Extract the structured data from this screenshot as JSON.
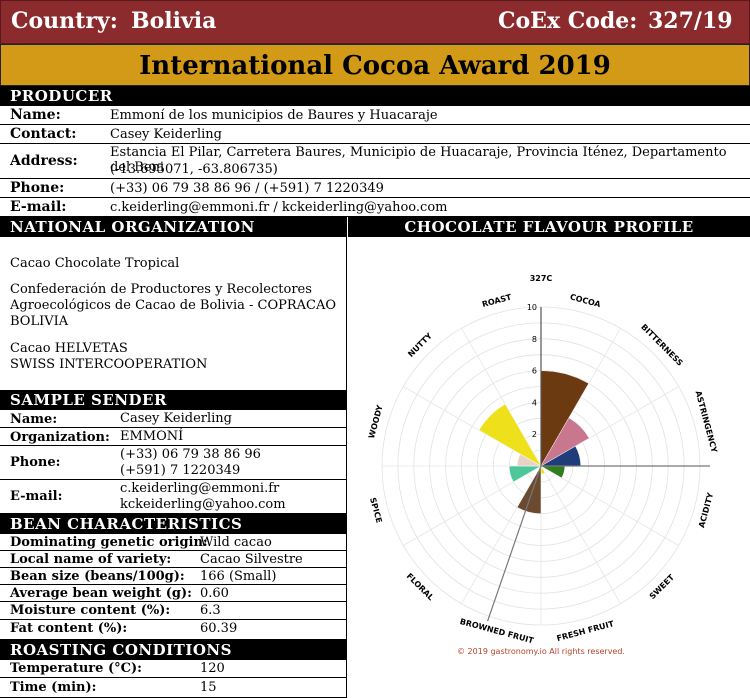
{
  "header": {
    "country_label": "Country:",
    "country": "Bolivia",
    "coex_label": "CoEx Code:",
    "coex_code": "327/19",
    "award_title": "International Cocoa Award 2019"
  },
  "producer": {
    "section_title": "PRODUCER",
    "rows": [
      {
        "label": "Name:",
        "value": "Emmoní de los municipios de Baures y Huacaraje"
      },
      {
        "label": "Contact:",
        "value": "Casey Keiderling"
      },
      {
        "label": "Address:",
        "value": "Estancia El Pilar, Carretera Baures, Municipio de Huacaraje, Provincia Iténez, Departamento del Beni",
        "value2": "(-13.695071, -63.806735)"
      },
      {
        "label": "Phone:",
        "value": "(+33) 06 79 38 86 96 / (+591) 7 1220349"
      },
      {
        "label": "E-mail:",
        "value": "c.keiderling@emmoni.fr / kckeiderling@yahoo.com"
      }
    ]
  },
  "noc": {
    "section_title": "NATIONAL ORGANIZATION COMMITTEE",
    "lines": [
      "Cacao Chocolate Tropical",
      "Confederación de Productores y Recolectores",
      "Agroecológicos de Cacao de Bolivia - COPRACAO",
      "BOLIVIA",
      "Cacao HELVETAS",
      "SWISS INTERCOOPERATION"
    ]
  },
  "sample_sender": {
    "section_title": "SAMPLE SENDER",
    "rows": [
      {
        "label": "Name:",
        "value": "Casey Keiderling"
      },
      {
        "label": "Organization:",
        "value": "EMMONÍ"
      },
      {
        "label": "Phone:",
        "value": "(+33) 06 79 38 86 96",
        "value2": "(+591) 7 1220349"
      },
      {
        "label": "E-mail:",
        "value": "c.keiderling@emmoni.fr",
        "value2": "kckeiderling@yahoo.com"
      }
    ]
  },
  "bean": {
    "section_title": "BEAN CHARACTERISTICS",
    "rows": [
      {
        "label": "Dominating genetic origin:",
        "value": "Wild cacao"
      },
      {
        "label": "Local name of variety:",
        "value": "Cacao Silvestre"
      },
      {
        "label": "Bean size (beans/100g):",
        "value": "166 (Small)"
      },
      {
        "label": "Average bean weight (g):",
        "value": "0.60"
      },
      {
        "label": "Moisture content (%):",
        "value": "6.3"
      },
      {
        "label": "Fat content (%):",
        "value": "60.39"
      }
    ]
  },
  "roasting": {
    "section_title": "ROASTING CONDITIONS",
    "rows": [
      {
        "label": "Temperature (°C):",
        "value": "120"
      },
      {
        "label": "Time (min):",
        "value": "15"
      }
    ]
  },
  "flavour": {
    "section_title": "CHOCOLATE FLAVOUR PROFILE",
    "copyright": "© 2019 gastronomy.io All rights reserved."
  },
  "chart_data": {
    "type": "polar-bar",
    "title": "327C",
    "categories": [
      "COCOA",
      "BITTERNESS",
      "ASTRINGENCY",
      "ACIDITY",
      "SWEET",
      "FRESH FRUIT",
      "BROWNED FRUIT",
      "FLORAL",
      "SPICE",
      "WOODY",
      "NUTTY",
      "ROAST"
    ],
    "values": [
      6,
      3.5,
      2.5,
      1.5,
      0,
      0.5,
      3,
      0,
      2,
      1.5,
      4.5,
      0
    ],
    "colors": [
      "#6b3a10",
      "#c9768f",
      "#1f3d7a",
      "#2e7d1f",
      "#e8d400",
      "#e8e000",
      "#6b4b30",
      "#d4b200",
      "#4cc79a",
      "#e6d3c6",
      "#efe01c",
      "#555555"
    ],
    "rlim": [
      0,
      10
    ],
    "ticks": [
      2,
      4,
      6,
      8,
      10
    ]
  }
}
